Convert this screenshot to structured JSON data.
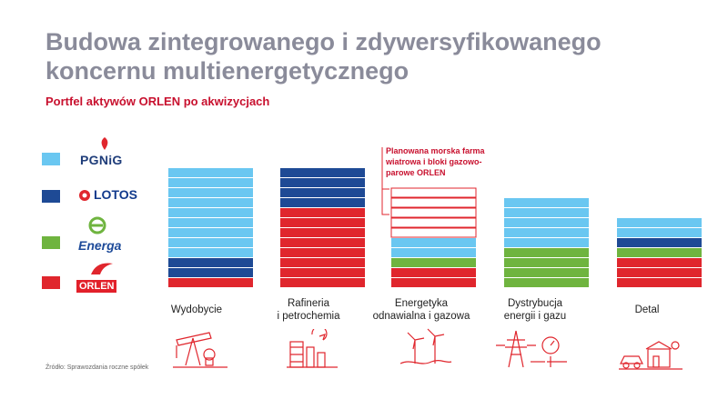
{
  "header": {
    "title": "Budowa zintegrowanego i zdywersyfikowanego koncernu multienergetycznego",
    "subtitle": "Portfel aktywów ORLEN po akwizycjach"
  },
  "legend": [
    {
      "name": "PGNiG",
      "color": "#6ac7f1",
      "logo_icon": "pgnig-flame-icon"
    },
    {
      "name": "LOTOS",
      "color": "#1e4a95",
      "logo_icon": "lotos-mark-icon"
    },
    {
      "name": "Energa",
      "color": "#6fb43f",
      "logo_icon": "energa-leaf-icon"
    },
    {
      "name": "ORLEN",
      "color": "#e0262d",
      "logo_icon": "orlen-eagle-icon"
    }
  ],
  "callout": "Planowana morska farma wiatrowa i bloki gazowo-parowe ORLEN",
  "source": "Źródło: Sprawozdania roczne spółek",
  "chart_data": {
    "type": "bar",
    "stacked": true,
    "unit": "blocks",
    "categories": [
      {
        "line1": "Wydobycie",
        "line2": "",
        "icon": "oil-pump-icon"
      },
      {
        "line1": "Rafineria",
        "line2": "i petrochemia",
        "icon": "refinery-icon"
      },
      {
        "line1": "Energetyka",
        "line2": "odnawialna i gazowa",
        "icon": "wind-turbines-icon"
      },
      {
        "line1": "Dystrybucja",
        "line2": "energii i gazu",
        "icon": "power-pylon-icon"
      },
      {
        "line1": "Detal",
        "line2": "",
        "icon": "fuel-station-icon"
      }
    ],
    "series": [
      {
        "name": "ORLEN",
        "color": "#e0262d",
        "values": [
          1,
          8,
          2,
          0,
          3
        ]
      },
      {
        "name": "Energa",
        "color": "#6fb43f",
        "values": [
          0,
          0,
          1,
          4,
          1
        ]
      },
      {
        "name": "LOTOS",
        "color": "#1e4a95",
        "values": [
          2,
          4,
          0,
          0,
          1
        ]
      },
      {
        "name": "PGNiG",
        "color": "#6ac7f1",
        "values": [
          9,
          0,
          2,
          5,
          2
        ]
      },
      {
        "name": "Planowana morska farma wiatrowa i bloki gazowo-parowe ORLEN",
        "color": "#ffffff",
        "outline": "#e0262d",
        "values": [
          0,
          0,
          5,
          0,
          0
        ]
      }
    ]
  }
}
